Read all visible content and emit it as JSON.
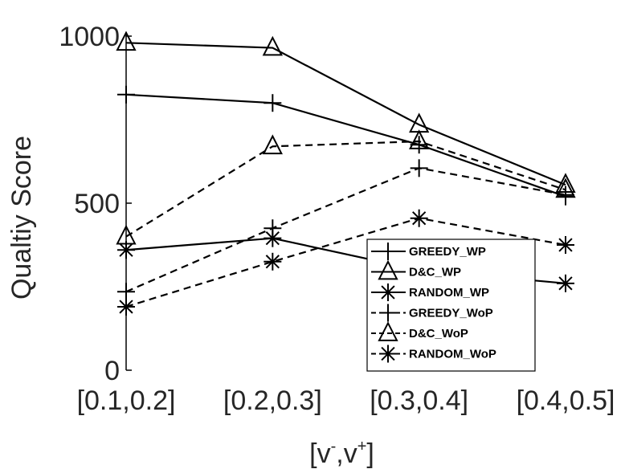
{
  "chart_data": {
    "type": "line",
    "title": "",
    "xlabel": "[v⁻,v⁺]",
    "xlabel_base": "[v",
    "xlabel_sup1": "-",
    "xlabel_mid": ",v",
    "xlabel_sup2": "+",
    "xlabel_end": "]",
    "ylabel": "Qualtiy Score",
    "categories": [
      "[0.1,0.2]",
      "[0.2,0.3]",
      "[0.3,0.4]",
      "[0.4,0.5]"
    ],
    "ylim": [
      0,
      1000
    ],
    "yticks": [
      0,
      500,
      1000
    ],
    "ytick_labels": [
      "0",
      "500",
      "1000"
    ],
    "grid": false,
    "legend_position": "right",
    "series": [
      {
        "name": "GREEDY_WP",
        "marker": "plus",
        "style": "solid",
        "values": [
          825,
          800,
          675,
          520
        ]
      },
      {
        "name": "D&C_WP",
        "marker": "triangle",
        "style": "solid",
        "values": [
          980,
          965,
          735,
          555
        ]
      },
      {
        "name": "RANDOM_WP",
        "marker": "asterisk",
        "style": "solid",
        "values": [
          360,
          395,
          300,
          260
        ]
      },
      {
        "name": "GREEDY_WoP",
        "marker": "plus",
        "style": "dashed",
        "values": [
          235,
          425,
          605,
          525
        ]
      },
      {
        "name": "D&C_WoP",
        "marker": "triangle",
        "style": "dashed",
        "values": [
          400,
          670,
          685,
          540
        ]
      },
      {
        "name": "RANDOM_WoP",
        "marker": "asterisk",
        "style": "dashed",
        "values": [
          190,
          325,
          455,
          375
        ]
      }
    ]
  }
}
